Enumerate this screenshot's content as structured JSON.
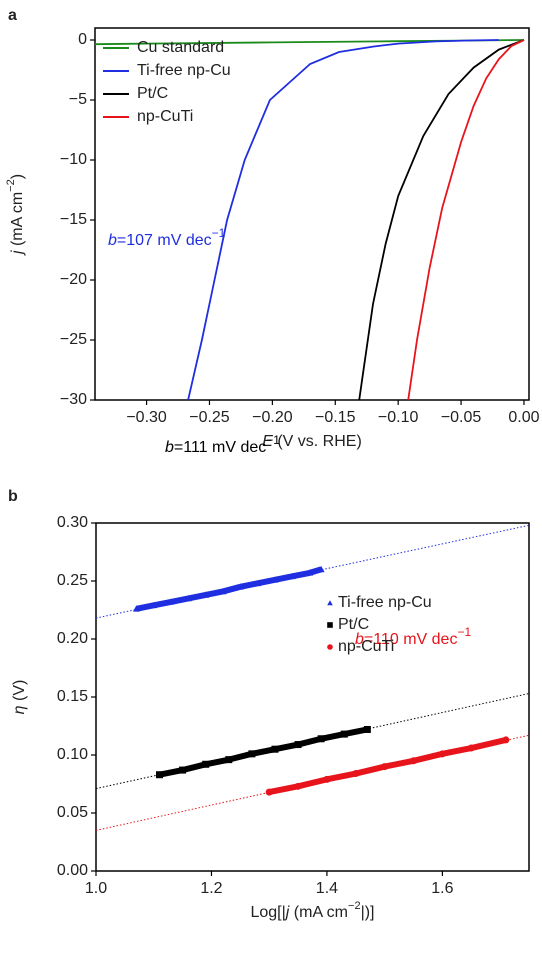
{
  "chart_data": [
    {
      "type": "line",
      "title": "a",
      "xlabel": [
        "E",
        " (V vs. RHE)"
      ],
      "ylabel": [
        "j",
        " (mA cm",
        "−2",
        ")"
      ],
      "xlim": [
        -0.341,
        0.004
      ],
      "ylim": [
        -30,
        1
      ],
      "xticks": [
        {
          "value": -0.3,
          "label": "−0.30"
        },
        {
          "value": -0.25,
          "label": "−0.25"
        },
        {
          "value": -0.2,
          "label": "−0.20"
        },
        {
          "value": -0.15,
          "label": "−0.15"
        },
        {
          "value": -0.1,
          "label": "−0.10"
        },
        {
          "value": -0.05,
          "label": "−0.05"
        },
        {
          "value": 0,
          "label": "0.00"
        }
      ],
      "yticks": [
        0,
        {
          "value": -5,
          "label": "−5"
        },
        {
          "value": -10,
          "label": "−10"
        },
        {
          "value": -15,
          "label": "−15"
        },
        {
          "value": -20,
          "label": "−20"
        },
        {
          "value": -25,
          "label": "−25"
        },
        {
          "value": -30,
          "label": "−30"
        }
      ],
      "legend": "upper left",
      "series": [
        {
          "name": "Cu standard",
          "color": "#1a8a1a",
          "x": [
            -0.341,
            -0.3,
            -0.2,
            -0.1,
            -0.05,
            0
          ],
          "values": [
            -0.35,
            -0.3,
            -0.2,
            -0.1,
            -0.05,
            0
          ]
        },
        {
          "name": "Ti-free np-Cu",
          "color": "#1f2ee0",
          "x": [
            -0.267,
            -0.256,
            -0.246,
            -0.236,
            -0.222,
            -0.202,
            -0.17,
            -0.147,
            -0.12,
            -0.1,
            -0.07,
            -0.04,
            -0.02
          ],
          "values": [
            -30,
            -25,
            -20,
            -15,
            -10,
            -5,
            -2,
            -1,
            -0.55,
            -0.3,
            -0.12,
            -0.03,
            0
          ]
        },
        {
          "name": "Pt/C",
          "color": "#000000",
          "x": [
            -0.131,
            -0.12,
            -0.11,
            -0.1,
            -0.08,
            -0.06,
            -0.04,
            -0.02,
            0
          ],
          "values": [
            -30,
            -22,
            -17,
            -13,
            -8,
            -4.5,
            -2.3,
            -0.8,
            0
          ]
        },
        {
          "name": "np-CuTi",
          "color": "#e8141c",
          "x": [
            -0.092,
            -0.085,
            -0.075,
            -0.065,
            -0.05,
            -0.04,
            -0.03,
            -0.02,
            -0.01,
            0
          ],
          "values": [
            -30,
            -25,
            -19,
            -14,
            -8.5,
            -5.5,
            -3.2,
            -1.6,
            -0.5,
            0
          ]
        }
      ]
    },
    {
      "type": "scatter",
      "title": "b",
      "xlabel": [
        "Log[|",
        "j",
        " (mA cm",
        "−2",
        "|)]"
      ],
      "ylabel": [
        "η",
        " (V)"
      ],
      "xlim": [
        1.0,
        1.75
      ],
      "ylim": [
        0,
        0.3
      ],
      "xticks": [
        {
          "value": 1.0,
          "label": "1.0"
        },
        {
          "value": 1.2,
          "label": "1.2"
        },
        {
          "value": 1.4,
          "label": "1.4"
        },
        {
          "value": 1.6,
          "label": "1.6"
        }
      ],
      "yticks": [
        {
          "value": 0,
          "label": "0.00"
        },
        {
          "value": 0.05,
          "label": "0.05"
        },
        {
          "value": 0.1,
          "label": "0.10"
        },
        {
          "value": 0.15,
          "label": "0.15"
        },
        {
          "value": 0.2,
          "label": "0.20"
        },
        {
          "value": 0.25,
          "label": "0.25"
        },
        {
          "value": 0.3,
          "label": "0.30"
        }
      ],
      "legend": "center right",
      "series": [
        {
          "name": "Ti-free np-Cu",
          "color": "#1f2ee0",
          "marker": "triangle",
          "x": [
            1.07,
            1.1,
            1.13,
            1.16,
            1.19,
            1.22,
            1.25,
            1.28,
            1.31,
            1.34,
            1.37,
            1.39
          ],
          "values": [
            0.226,
            0.229,
            0.232,
            0.235,
            0.238,
            0.241,
            0.245,
            0.248,
            0.251,
            0.254,
            0.257,
            0.26
          ],
          "fit": {
            "x": [
              1.0,
              1.75
            ],
            "values": [
              0.218,
              0.298
            ]
          },
          "annotation": [
            "b",
            "=107 mV dec",
            "−1"
          ]
        },
        {
          "name": "Pt/C",
          "color": "#000000",
          "marker": "square",
          "x": [
            1.11,
            1.15,
            1.19,
            1.23,
            1.27,
            1.31,
            1.35,
            1.39,
            1.43,
            1.47
          ],
          "values": [
            0.083,
            0.087,
            0.092,
            0.096,
            0.101,
            0.105,
            0.109,
            0.114,
            0.118,
            0.122
          ],
          "fit": {
            "x": [
              1.0,
              1.75
            ],
            "values": [
              0.071,
              0.153
            ]
          },
          "annotation": [
            "b",
            "=111 mV dec",
            "−1"
          ]
        },
        {
          "name": "np-CuTi",
          "color": "#e8141c",
          "marker": "circle",
          "x": [
            1.3,
            1.35,
            1.4,
            1.45,
            1.5,
            1.55,
            1.6,
            1.65,
            1.71
          ],
          "values": [
            0.068,
            0.073,
            0.079,
            0.084,
            0.09,
            0.095,
            0.101,
            0.106,
            0.113
          ],
          "fit": {
            "x": [
              1.0,
              1.75
            ],
            "values": [
              0.035,
              0.117
            ]
          },
          "annotation": [
            "b",
            "=110 mV dec",
            "−1"
          ]
        }
      ]
    }
  ]
}
